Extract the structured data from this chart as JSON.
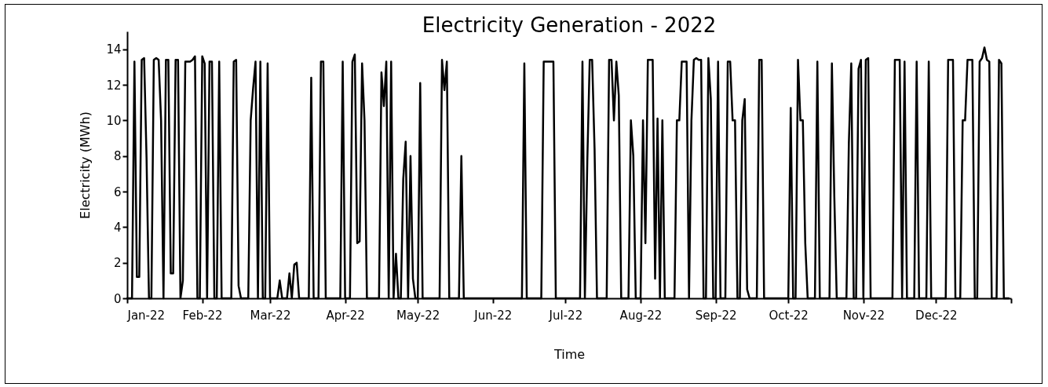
{
  "chart_data": {
    "type": "line",
    "title": "Electricity Generation - 2022",
    "xlabel": "Time",
    "ylabel": "Electricity (MWh)",
    "x": [
      "2022-01-01",
      "2022-01-03",
      "2022-01-04",
      "2022-01-05",
      "2022-01-06",
      "2022-01-07",
      "2022-01-08",
      "2022-01-09",
      "2022-01-10",
      "2022-01-11",
      "2022-01-12",
      "2022-01-13",
      "2022-01-14",
      "2022-01-15",
      "2022-01-16",
      "2022-01-17",
      "2022-01-18",
      "2022-01-19",
      "2022-01-20",
      "2022-01-21",
      "2022-01-22",
      "2022-01-23",
      "2022-01-24",
      "2022-01-25",
      "2022-01-26",
      "2022-01-27",
      "2022-01-28",
      "2022-01-29",
      "2022-01-30",
      "2022-01-31",
      "2022-02-01",
      "2022-02-02",
      "2022-02-03",
      "2022-02-04",
      "2022-02-05",
      "2022-02-06",
      "2022-02-07",
      "2022-02-08",
      "2022-02-09",
      "2022-02-13",
      "2022-02-14",
      "2022-02-15",
      "2022-02-16",
      "2022-02-17",
      "2022-02-20",
      "2022-02-21",
      "2022-02-22",
      "2022-02-23",
      "2022-02-24",
      "2022-02-25",
      "2022-02-26",
      "2022-02-27",
      "2022-02-28",
      "2022-03-01",
      "2022-03-04",
      "2022-03-05",
      "2022-03-06",
      "2022-03-08",
      "2022-03-09",
      "2022-03-10",
      "2022-03-11",
      "2022-03-12",
      "2022-03-13",
      "2022-03-17",
      "2022-03-18",
      "2022-03-19",
      "2022-03-21",
      "2022-03-22",
      "2022-03-23",
      "2022-03-24",
      "2022-03-30",
      "2022-03-31",
      "2022-04-01",
      "2022-04-03",
      "2022-04-04",
      "2022-04-05",
      "2022-04-06",
      "2022-04-07",
      "2022-04-08",
      "2022-04-09",
      "2022-04-10",
      "2022-04-15",
      "2022-04-16",
      "2022-04-17",
      "2022-04-18",
      "2022-04-19",
      "2022-04-20",
      "2022-04-21",
      "2022-04-22",
      "2022-04-23",
      "2022-04-24",
      "2022-04-25",
      "2022-04-26",
      "2022-04-27",
      "2022-04-28",
      "2022-04-29",
      "2022-04-30",
      "2022-05-01",
      "2022-05-02",
      "2022-05-03",
      "2022-05-10",
      "2022-05-11",
      "2022-05-12",
      "2022-05-13",
      "2022-05-14",
      "2022-05-18",
      "2022-05-19",
      "2022-05-20",
      "2022-06-13",
      "2022-06-14",
      "2022-06-15",
      "2022-06-21",
      "2022-06-22",
      "2022-06-23",
      "2022-06-24",
      "2022-06-25",
      "2022-06-26",
      "2022-06-27",
      "2022-07-07",
      "2022-07-08",
      "2022-07-09",
      "2022-07-10",
      "2022-07-11",
      "2022-07-12",
      "2022-07-13",
      "2022-07-14",
      "2022-07-18",
      "2022-07-19",
      "2022-07-20",
      "2022-07-21",
      "2022-07-22",
      "2022-07-23",
      "2022-07-24",
      "2022-07-27",
      "2022-07-28",
      "2022-07-29",
      "2022-07-30",
      "2022-08-01",
      "2022-08-02",
      "2022-08-03",
      "2022-08-04",
      "2022-08-05",
      "2022-08-06",
      "2022-08-07",
      "2022-08-08",
      "2022-08-09",
      "2022-08-10",
      "2022-08-11",
      "2022-08-15",
      "2022-08-16",
      "2022-08-17",
      "2022-08-18",
      "2022-08-19",
      "2022-08-20",
      "2022-08-21",
      "2022-08-22",
      "2022-08-23",
      "2022-08-24",
      "2022-08-25",
      "2022-08-26",
      "2022-08-27",
      "2022-08-28",
      "2022-08-29",
      "2022-08-30",
      "2022-08-31",
      "2022-09-01",
      "2022-09-02",
      "2022-09-03",
      "2022-09-05",
      "2022-09-06",
      "2022-09-07",
      "2022-09-08",
      "2022-09-09",
      "2022-09-10",
      "2022-09-11",
      "2022-09-12",
      "2022-09-13",
      "2022-09-14",
      "2022-09-15",
      "2022-09-18",
      "2022-09-19",
      "2022-09-20",
      "2022-09-21",
      "2022-10-01",
      "2022-10-02",
      "2022-10-03",
      "2022-10-04",
      "2022-10-05",
      "2022-10-06",
      "2022-10-07",
      "2022-10-08",
      "2022-10-09",
      "2022-10-12",
      "2022-10-13",
      "2022-10-14",
      "2022-10-18",
      "2022-10-19",
      "2022-10-20",
      "2022-10-21",
      "2022-10-25",
      "2022-10-26",
      "2022-10-27",
      "2022-10-28",
      "2022-10-29",
      "2022-10-30",
      "2022-10-31",
      "2022-11-01",
      "2022-11-02",
      "2022-11-03",
      "2022-11-04",
      "2022-11-13",
      "2022-11-14",
      "2022-11-15",
      "2022-11-16",
      "2022-11-17",
      "2022-11-18",
      "2022-11-19",
      "2022-11-22",
      "2022-11-23",
      "2022-11-24",
      "2022-11-27",
      "2022-11-28",
      "2022-11-29",
      "2022-12-05",
      "2022-12-06",
      "2022-12-07",
      "2022-12-08",
      "2022-12-09",
      "2022-12-11",
      "2022-12-12",
      "2022-12-13",
      "2022-12-14",
      "2022-12-15",
      "2022-12-16",
      "2022-12-17",
      "2022-12-18",
      "2022-12-19",
      "2022-12-20",
      "2022-12-21",
      "2022-12-22",
      "2022-12-23",
      "2022-12-24",
      "2022-12-26",
      "2022-12-27",
      "2022-12-28",
      "2022-12-29",
      "2022-12-31"
    ],
    "series": [
      {
        "color": "#000000",
        "values": [
          0,
          0,
          13.3,
          1.2,
          1.2,
          13.4,
          13.5,
          7.9,
          0,
          0,
          13.4,
          13.5,
          13.4,
          10.0,
          0,
          13.4,
          13.4,
          1.4,
          1.4,
          13.4,
          13.4,
          0,
          1.0,
          13.3,
          13.3,
          13.3,
          13.4,
          13.6,
          0,
          0,
          13.6,
          13.2,
          0,
          13.3,
          13.3,
          0,
          0,
          13.3,
          0,
          0,
          13.3,
          13.4,
          0.7,
          0,
          0,
          10.0,
          11.8,
          13.3,
          0,
          13.3,
          0,
          0,
          13.2,
          0,
          0,
          1.0,
          0,
          0,
          1.4,
          0,
          1.9,
          2.0,
          0,
          0,
          12.4,
          0,
          0,
          13.3,
          13.3,
          0,
          0,
          13.3,
          0,
          0,
          13.3,
          13.7,
          3.1,
          3.2,
          13.2,
          10.0,
          0,
          0,
          12.7,
          10.8,
          13.3,
          0,
          13.3,
          0,
          2.5,
          0,
          0,
          6.7,
          8.8,
          0,
          8.0,
          1.1,
          0,
          0,
          12.1,
          0,
          0,
          13.4,
          11.7,
          13.3,
          0,
          0,
          8.0,
          0,
          0,
          13.2,
          0,
          0,
          13.3,
          13.3,
          13.3,
          13.3,
          13.3,
          0,
          0,
          13.3,
          0,
          7.7,
          13.4,
          13.4,
          8.4,
          0,
          0,
          13.4,
          13.4,
          10.0,
          13.3,
          11.4,
          0,
          0,
          10.0,
          8.0,
          0,
          0,
          10.0,
          3.1,
          13.4,
          13.4,
          13.4,
          1.1,
          10.1,
          0,
          10.0,
          0,
          0,
          10.0,
          10.0,
          13.3,
          13.3,
          13.3,
          0,
          10.0,
          13.4,
          13.5,
          13.4,
          13.4,
          0,
          0,
          13.5,
          11.2,
          0,
          0,
          13.3,
          0,
          0,
          13.3,
          13.3,
          10.0,
          10.0,
          0,
          0,
          10.0,
          11.2,
          0.5,
          0,
          0,
          13.4,
          13.4,
          0,
          0,
          10.7,
          0,
          0,
          13.4,
          10.0,
          10.0,
          3.1,
          0,
          0,
          13.3,
          0,
          0,
          13.2,
          5.7,
          0,
          0,
          8.7,
          13.2,
          0,
          0,
          12.9,
          13.4,
          0,
          13.4,
          13.5,
          0,
          0,
          13.4,
          13.4,
          13.4,
          0,
          13.3,
          0,
          0,
          13.3,
          0,
          0,
          13.3,
          0,
          0,
          13.4,
          13.4,
          13.4,
          0,
          0,
          10.0,
          10.0,
          13.4,
          13.4,
          13.4,
          0,
          0,
          13.3,
          13.5,
          14.1,
          13.4,
          13.3,
          0,
          0,
          13.4,
          13.2,
          0,
          0
        ]
      }
    ],
    "xlim": [
      "2022-01-01",
      "2023-01-01"
    ],
    "xticks": [
      {
        "value": "2022-01-01",
        "label": "Jan-22"
      },
      {
        "value": "2022-02-01",
        "label": "Feb-22"
      },
      {
        "value": "2022-03-01",
        "label": "Mar-22"
      },
      {
        "value": "2022-04-01",
        "label": "Apr-22"
      },
      {
        "value": "2022-05-01",
        "label": "May-22"
      },
      {
        "value": "2022-06-01",
        "label": "Jun-22"
      },
      {
        "value": "2022-07-01",
        "label": "Jul-22"
      },
      {
        "value": "2022-08-01",
        "label": "Aug-22"
      },
      {
        "value": "2022-09-01",
        "label": "Sep-22"
      },
      {
        "value": "2022-10-01",
        "label": "Oct-22"
      },
      {
        "value": "2022-11-01",
        "label": "Nov-22"
      },
      {
        "value": "2022-12-01",
        "label": "Dec-22"
      },
      {
        "value": "2023-01-01",
        "label": null
      }
    ],
    "ylim": [
      0,
      15
    ],
    "yticks": [
      0,
      2,
      4,
      6,
      8,
      10,
      12,
      14
    ],
    "grid": false,
    "legend": false,
    "marker": "none",
    "line_style": "solid"
  }
}
